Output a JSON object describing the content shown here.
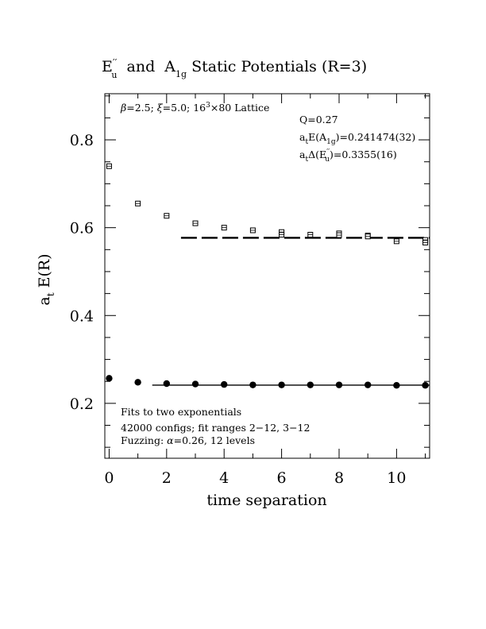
{
  "chart_data": {
    "type": "scatter",
    "title_parts": {
      "e": "E",
      "e_prime": "′′",
      "e_sub": "u",
      "and": "  and  A",
      "a_sub": "1g",
      "rest": " Static Potentials (R=3)"
    },
    "xlabel": "time separation",
    "ylabel": "E(R)",
    "ylabel_prefix": "a",
    "ylabel_prefix_sub": "t",
    "xlim": [
      -0.15,
      11.15
    ],
    "ylim": [
      0.075,
      0.905
    ],
    "xticks": [
      0,
      2,
      4,
      6,
      8,
      10
    ],
    "xtick_labels": [
      "0",
      "2",
      "4",
      "6",
      "8",
      "10"
    ],
    "yticks": [
      0.2,
      0.4,
      0.6,
      0.8
    ],
    "ytick_labels": [
      "0.2",
      "0.4",
      "0.6",
      "0.8"
    ],
    "grid": false,
    "annotations": {
      "lattice": {
        "beta": "β",
        "beta_val": "=2.5; ",
        "xi": "ξ",
        "xi_val": "=5.0; 16",
        "cube": "3",
        "rest": "×80 Lattice"
      },
      "q": "Q=0.27",
      "fit_a1g": {
        "a": "a",
        "a_sub": "t",
        "mid": "E(A",
        "mid_sub": "1g",
        "end": ")=0.241474(32)"
      },
      "fit_eu": {
        "a": "a",
        "a_sub": "t",
        "mid": "Δ(E",
        "prime": "′′",
        "mid_sub": "u",
        "end": ")=0.3355(16)"
      },
      "fits_line1": "Fits to two exponentials",
      "fits_line2": "42000 configs; fit ranges 2−12, 3−12",
      "fits_line3_a": "Fuzzing: ",
      "fits_line3_alpha": "α",
      "fits_line3_b": "=0.26, 12 levels"
    },
    "series": [
      {
        "marker": "open-square",
        "x": [
          0,
          1,
          2,
          3,
          4,
          5,
          6,
          6,
          7,
          8,
          8,
          9,
          9,
          10,
          11,
          11
        ],
        "y": [
          0.74,
          0.655,
          0.627,
          0.61,
          0.6,
          0.594,
          0.59,
          0.584,
          0.584,
          0.587,
          0.583,
          0.582,
          0.58,
          0.569,
          0.572,
          0.566
        ]
      },
      {
        "marker": "filled-circle",
        "x": [
          0,
          1,
          2,
          3,
          4,
          5,
          6,
          7,
          8,
          9,
          10,
          11
        ],
        "y": [
          0.257,
          0.248,
          0.245,
          0.244,
          0.243,
          0.242,
          0.242,
          0.242,
          0.242,
          0.242,
          0.241,
          0.241
        ]
      }
    ],
    "fit_lines": [
      {
        "name": "A1g",
        "style": "solid",
        "x": [
          1.5,
          11.15
        ],
        "y": [
          0.241474,
          0.241474
        ]
      },
      {
        "name": "Eu",
        "style": "dashed",
        "x": [
          2.5,
          11.15
        ],
        "y": [
          0.577,
          0.577
        ]
      }
    ]
  }
}
